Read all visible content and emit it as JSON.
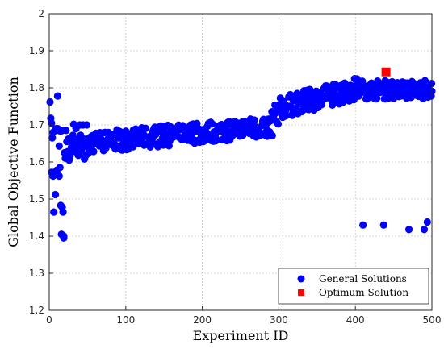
{
  "chart_data": {
    "type": "scatter",
    "xlabel": "Experiment ID",
    "ylabel": "Global Objective Function",
    "xlim": [
      0,
      500
    ],
    "ylim": [
      1.2,
      2.0
    ],
    "xticks": [
      "0",
      "100",
      "200",
      "300",
      "400",
      "500"
    ],
    "yticks": [
      "1.2",
      "1.3",
      "1.4",
      "1.5",
      "1.6",
      "1.7",
      "1.8",
      "1.9",
      "2"
    ],
    "grid": true,
    "legend_position": "bottom-right",
    "series": [
      {
        "name": "General Solutions",
        "color": "#0000ff",
        "marker": "circle",
        "x": [
          1,
          2,
          3,
          4,
          5,
          6,
          7,
          8,
          9,
          10,
          11,
          12,
          13,
          14,
          15,
          16,
          17,
          18,
          19,
          20,
          3,
          5,
          7,
          9,
          11,
          13,
          15,
          17,
          19,
          21,
          22,
          23,
          24,
          25,
          26,
          27,
          28,
          29,
          30,
          31,
          32,
          33,
          34,
          35,
          36,
          37,
          38,
          39,
          40,
          41,
          42,
          43,
          44,
          45,
          46,
          47,
          48,
          49,
          50,
          410,
          437,
          470,
          490,
          494,
          496,
          498
        ],
        "y": [
          1.762,
          1.718,
          1.572,
          1.665,
          1.562,
          1.465,
          1.565,
          1.512,
          1.69,
          1.578,
          1.778,
          1.685,
          1.643,
          1.585,
          1.483,
          1.405,
          1.685,
          1.465,
          1.395,
          1.625,
          1.705,
          1.68,
          1.572,
          1.685,
          1.69,
          1.562,
          1.683,
          1.478,
          1.4,
          1.61,
          1.685,
          1.655,
          1.628,
          1.662,
          1.605,
          1.615,
          1.63,
          1.64,
          1.65,
          1.672,
          1.702,
          1.66,
          1.628,
          1.69,
          1.64,
          1.66,
          1.618,
          1.65,
          1.7,
          1.672,
          1.632,
          1.652,
          1.7,
          1.662,
          1.608,
          1.642,
          1.618,
          1.7,
          1.648,
          1.43,
          1.43,
          1.418,
          1.418,
          1.438,
          1.8,
          1.78
        ]
      },
      {
        "name": "Optimum Solution",
        "color": "#ff0000",
        "marker": "square",
        "x": [
          440
        ],
        "y": [
          1.843
        ]
      }
    ]
  }
}
